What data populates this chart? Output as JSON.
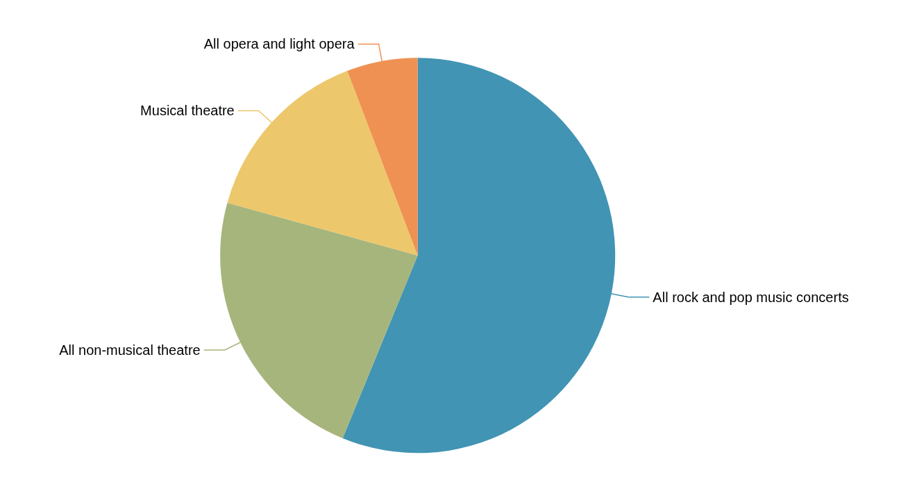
{
  "chart_data": {
    "type": "pie",
    "categories": [
      "All rock and pop music concerts",
      "All non-musical theatre",
      "Musical theatre",
      "All opera and light opera"
    ],
    "values": [
      56.2,
      23.1,
      14.9,
      5.8
    ],
    "colors": [
      "#4194b3",
      "#a6b57c",
      "#edc76b",
      "#ef9152"
    ],
    "legend": false
  }
}
